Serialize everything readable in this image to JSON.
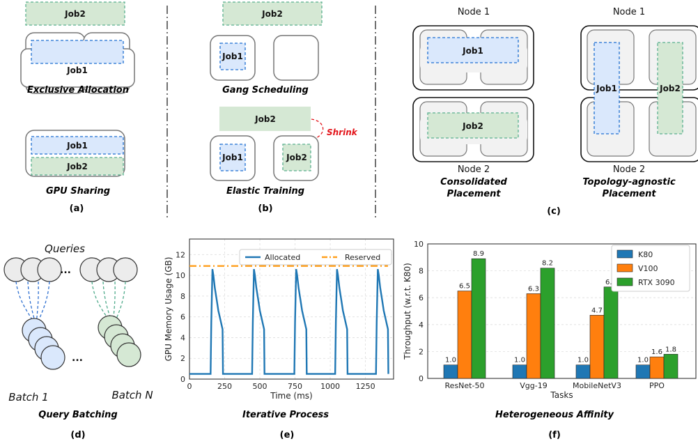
{
  "panel_a": {
    "job2_top": "Job2",
    "job1": "Job1",
    "caption_top": "Exclusive Allocation",
    "share_job1": "Job1",
    "share_job2": "Job2",
    "caption_bottom": "GPU Sharing",
    "label": "(a)"
  },
  "panel_b": {
    "job2_top": "Job2",
    "job1_top": "Job1",
    "caption_top": "Gang Scheduling",
    "job2_elastic": "Job2",
    "shrink": "Shrink",
    "job1_bottom": "Job1",
    "job2_bottom": "Job2",
    "caption_bottom": "Elastic Training",
    "label": "(b)"
  },
  "panel_c": {
    "left_node_top": "Node 1",
    "left_job1": "Job1",
    "left_job2": "Job2",
    "left_node_bottom": "Node 2",
    "left_caption_1": "Consolidated",
    "left_caption_2": "Placement",
    "right_node_top": "Node 1",
    "right_job1": "Job1",
    "right_job2": "Job2",
    "right_node_bottom": "Node 2",
    "right_caption_1": "Topology-agnostic",
    "right_caption_2": "Placement",
    "label": "(c)"
  },
  "panel_d": {
    "queries": "Queries",
    "ellipsis_top": "...",
    "ellipsis_bottom": "...",
    "batch_1": "Batch 1",
    "batch_n": "Batch N",
    "caption": "Query Batching",
    "label": "(d)"
  },
  "panel_e": {
    "caption": "Iterative Process",
    "label": "(e)"
  },
  "panel_f": {
    "caption": "Heterogeneous Affinity",
    "label": "(f)"
  },
  "colors": {
    "blue_fill": "#dae8fc",
    "blue_stroke": "#1f6fd1",
    "green_fill": "#d5e8d4",
    "green_stroke": "#5ab08f",
    "k80": "#1f77b4",
    "v100": "#ff7f0e",
    "rtx3090": "#2ca02c",
    "reserved": "#ff9f1c",
    "shrink": "#e3141a"
  },
  "chart_data": [
    {
      "type": "line",
      "xlabel": "Time (ms)",
      "ylabel": "GPU Memory Usage (GB)",
      "xlim": [
        0,
        1450
      ],
      "ylim": [
        0,
        13.5
      ],
      "xticks": [
        0,
        250,
        500,
        750,
        1000,
        1250
      ],
      "yticks": [
        0,
        2,
        4,
        6,
        8,
        10,
        12
      ],
      "grid": true,
      "legend": "top",
      "series": [
        {
          "name": "Allocated",
          "style": "solid",
          "x": [
            0,
            150,
            155,
            163,
            170,
            180,
            195,
            205,
            215,
            235,
            238,
            300,
            445,
            450,
            458,
            465,
            475,
            490,
            500,
            510,
            530,
            533,
            600,
            745,
            750,
            758,
            765,
            775,
            790,
            800,
            810,
            830,
            833,
            900,
            1035,
            1040,
            1048,
            1055,
            1065,
            1080,
            1090,
            1100,
            1120,
            1123,
            1200,
            1325,
            1330,
            1338,
            1345,
            1355,
            1370,
            1380,
            1390,
            1410,
            1413
          ],
          "y": [
            0.5,
            0.5,
            5.5,
            10.6,
            10.0,
            8.8,
            7.5,
            6.6,
            6.0,
            4.8,
            0.5,
            0.5,
            0.5,
            5.5,
            10.6,
            10.0,
            8.8,
            7.5,
            6.6,
            6.0,
            4.8,
            0.5,
            0.5,
            0.5,
            5.5,
            10.6,
            10.0,
            8.8,
            7.5,
            6.6,
            6.0,
            4.8,
            0.5,
            0.5,
            0.5,
            5.5,
            10.6,
            10.0,
            8.8,
            7.5,
            6.6,
            6.0,
            4.8,
            0.5,
            0.5,
            0.5,
            5.5,
            10.6,
            10.0,
            8.8,
            7.5,
            6.6,
            6.0,
            4.8,
            0.5
          ]
        },
        {
          "name": "Reserved",
          "style": "dashdot",
          "x": [
            0,
            1410
          ],
          "y": [
            10.9,
            10.9
          ]
        }
      ]
    },
    {
      "type": "bar",
      "xlabel": "Tasks",
      "ylabel": "Throughput (w.r.t. K80)",
      "ylim": [
        0,
        10
      ],
      "yticks": [
        0,
        2,
        4,
        6,
        8,
        10
      ],
      "grid": true,
      "legend": "top-right",
      "categories": [
        "ResNet-50",
        "Vgg-19",
        "MobileNetV3",
        "PPO"
      ],
      "series": [
        {
          "name": "K80",
          "values": [
            1.0,
            1.0,
            1.0,
            1.0
          ],
          "labels": [
            "1.0",
            "1.0",
            "1.0",
            "1.0"
          ]
        },
        {
          "name": "V100",
          "values": [
            6.5,
            6.3,
            4.7,
            1.6
          ],
          "labels": [
            "6.5",
            "6.3",
            "4.7",
            "1.6"
          ]
        },
        {
          "name": "RTX 3090",
          "values": [
            8.9,
            8.2,
            6.8,
            1.8
          ],
          "labels": [
            "8.9",
            "8.2",
            "6.8",
            "1.8"
          ]
        }
      ]
    }
  ]
}
